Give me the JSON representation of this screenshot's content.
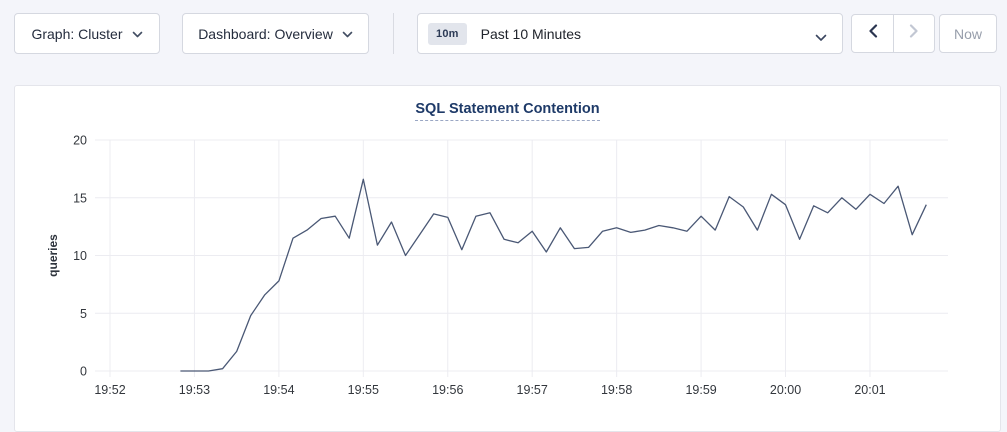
{
  "toolbar": {
    "graph_dropdown": {
      "label": "Graph: Cluster",
      "icon": "chevron-down"
    },
    "dashboard_dropdown": {
      "label": "Dashboard: Overview",
      "icon": "chevron-down"
    },
    "time_selector": {
      "badge": "10m",
      "label": "Past 10 Minutes",
      "icon": "chevron-down"
    },
    "prev_button": {
      "icon": "chevron-left",
      "enabled": true
    },
    "next_button": {
      "icon": "chevron-right",
      "enabled": false
    },
    "now_button": {
      "label": "Now",
      "enabled": false
    }
  },
  "colors": {
    "line": "#4a5875",
    "grid": "#ececf1",
    "tick_text": "#33373d",
    "title_text": "#1e3a68",
    "page_bg": "#f4f5fa"
  },
  "chart_data": {
    "type": "line",
    "title": "SQL Statement Contention",
    "ylabel": "queries",
    "ylim": [
      0,
      20
    ],
    "y_ticks": [
      0,
      5,
      10,
      15,
      20
    ],
    "x_ticks": [
      "19:52",
      "19:53",
      "19:54",
      "19:55",
      "19:56",
      "19:57",
      "19:58",
      "19:59",
      "20:00",
      "20:01"
    ],
    "grid": true,
    "legend": "none",
    "series": [
      {
        "name": "SQL Statement Contention",
        "unit": "queries",
        "points": [
          [
            "19:52:50",
            0
          ],
          [
            "19:53:00",
            0
          ],
          [
            "19:53:10",
            0
          ],
          [
            "19:53:20",
            0.2
          ],
          [
            "19:53:30",
            1.7
          ],
          [
            "19:53:40",
            4.8
          ],
          [
            "19:53:50",
            6.6
          ],
          [
            "19:54:00",
            7.8
          ],
          [
            "19:54:10",
            11.5
          ],
          [
            "19:54:20",
            12.2
          ],
          [
            "19:54:30",
            13.2
          ],
          [
            "19:54:40",
            13.4
          ],
          [
            "19:54:50",
            11.5
          ],
          [
            "19:55:00",
            16.6
          ],
          [
            "19:55:10",
            10.9
          ],
          [
            "19:55:20",
            12.9
          ],
          [
            "19:55:30",
            10.0
          ],
          [
            "19:55:40",
            11.8
          ],
          [
            "19:55:50",
            13.6
          ],
          [
            "19:56:00",
            13.3
          ],
          [
            "19:56:10",
            10.5
          ],
          [
            "19:56:20",
            13.4
          ],
          [
            "19:56:30",
            13.7
          ],
          [
            "19:56:40",
            11.4
          ],
          [
            "19:56:50",
            11.1
          ],
          [
            "19:57:00",
            12.1
          ],
          [
            "19:57:10",
            10.3
          ],
          [
            "19:57:20",
            12.4
          ],
          [
            "19:57:30",
            10.6
          ],
          [
            "19:57:40",
            10.7
          ],
          [
            "19:57:50",
            12.1
          ],
          [
            "19:58:00",
            12.4
          ],
          [
            "19:58:10",
            12.0
          ],
          [
            "19:58:20",
            12.2
          ],
          [
            "19:58:30",
            12.6
          ],
          [
            "19:58:40",
            12.4
          ],
          [
            "19:58:50",
            12.1
          ],
          [
            "19:59:00",
            13.4
          ],
          [
            "19:59:10",
            12.2
          ],
          [
            "19:59:20",
            15.1
          ],
          [
            "19:59:30",
            14.2
          ],
          [
            "19:59:40",
            12.2
          ],
          [
            "19:59:50",
            15.3
          ],
          [
            "20:00:00",
            14.4
          ],
          [
            "20:00:10",
            11.4
          ],
          [
            "20:00:20",
            14.3
          ],
          [
            "20:00:30",
            13.7
          ],
          [
            "20:00:40",
            15.0
          ],
          [
            "20:00:50",
            14.0
          ],
          [
            "20:01:00",
            15.3
          ],
          [
            "20:01:10",
            14.5
          ],
          [
            "20:01:20",
            16.0
          ],
          [
            "20:01:30",
            11.8
          ],
          [
            "20:01:40",
            14.4
          ]
        ]
      }
    ]
  }
}
